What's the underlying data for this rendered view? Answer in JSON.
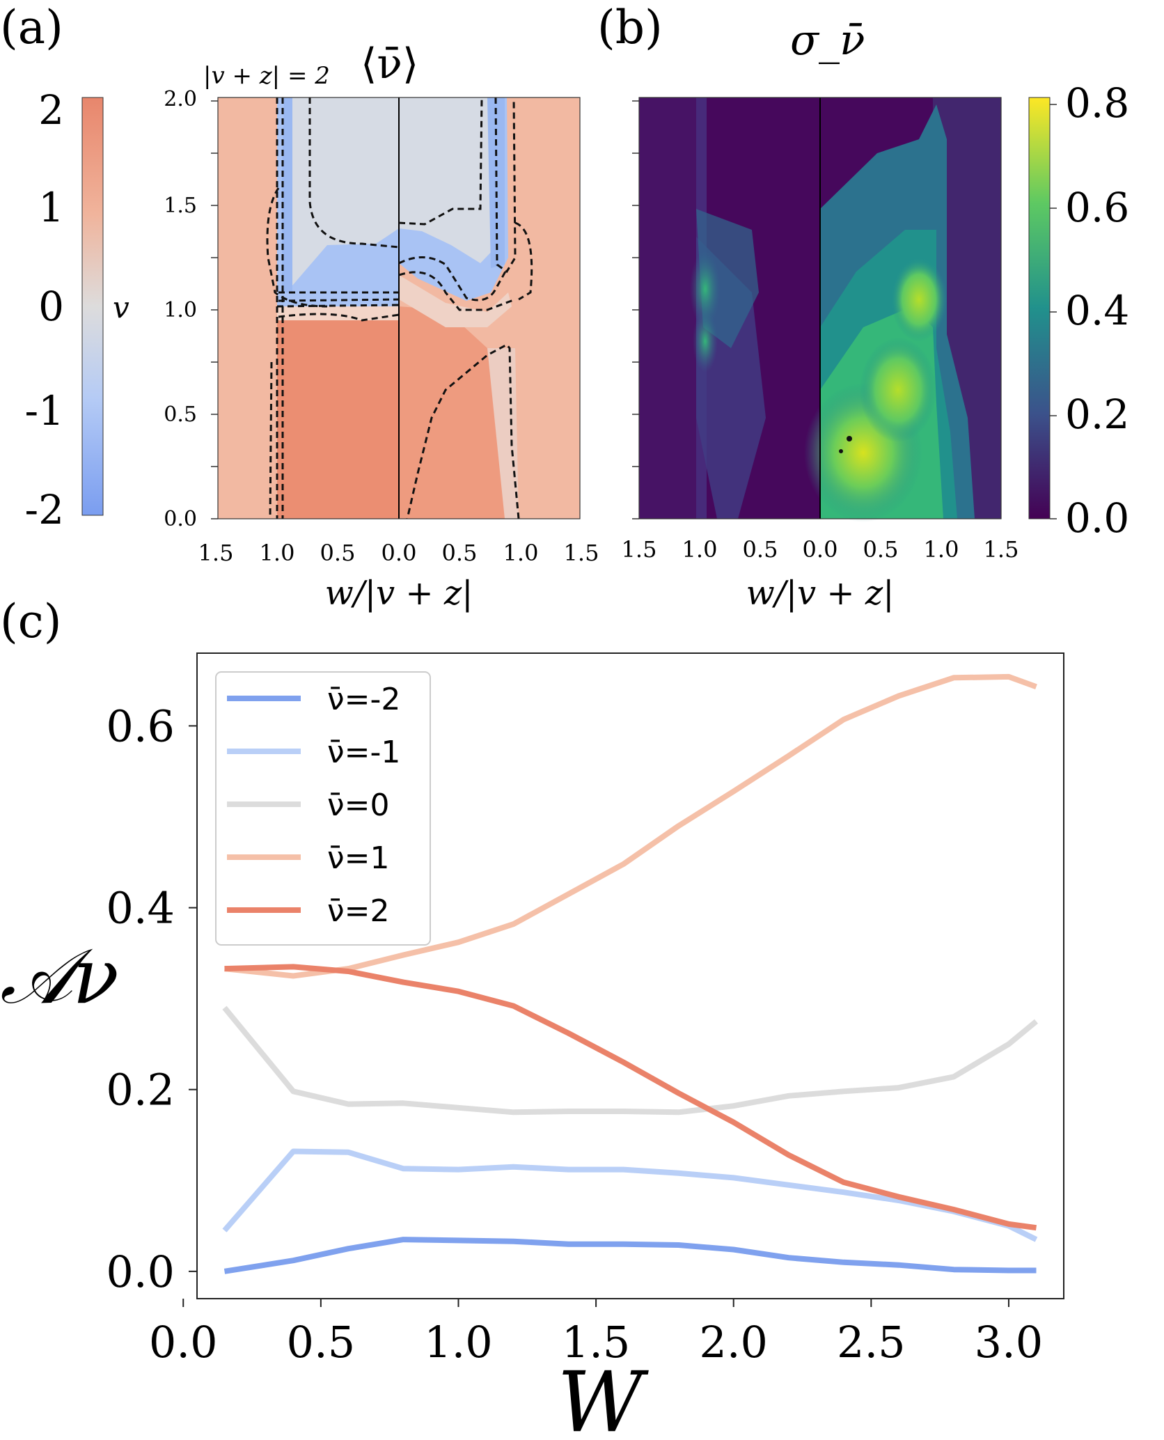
{
  "panel_labels": {
    "a": "(a)",
    "b": "(b)",
    "c": "(c)"
  },
  "colors": {
    "nu_m2": "#7fa1ee",
    "nu_m1": "#b9cff7",
    "nu_0": "#dcdcdc",
    "nu_1": "#f5c0a8",
    "nu_2": "#ea8269",
    "heat_hi": "#e8866c",
    "heat_lo": "#8ab0f3",
    "viridis_lo": "#440154",
    "viridis_hi": "#fde725"
  },
  "chart_data": [
    {
      "id": "a",
      "type": "heatmap",
      "title": "⟨ν̄⟩",
      "annotation": "|v + z| = 2",
      "xlabel": "w/|v + z|",
      "ylabel": "",
      "x_ticks": [
        "1.5",
        "1.0",
        "0.5",
        "0.0",
        "0.5",
        "1.0",
        "1.5"
      ],
      "y_ticks": [
        "0.0",
        "0.5",
        "1.0",
        "1.5",
        "2.0"
      ],
      "ylim": [
        0,
        2
      ],
      "colorbar": {
        "label": "v",
        "ticks": [
          "2",
          "1",
          "0",
          "-1",
          "-2"
        ],
        "range": [
          -2,
          2
        ],
        "colormap": "coolwarm"
      },
      "contours": "dashed"
    },
    {
      "id": "b",
      "type": "heatmap",
      "title": "σ_ν̄",
      "xlabel": "w/|v + z|",
      "ylabel": "",
      "x_ticks": [
        "1.5",
        "1.0",
        "0.5",
        "0.0",
        "0.5",
        "1.0",
        "1.5"
      ],
      "colorbar": {
        "label": "",
        "ticks": [
          "0.8",
          "0.6",
          "0.4",
          "0.2",
          "0.0"
        ],
        "range": [
          0,
          0.8
        ],
        "colormap": "viridis"
      }
    },
    {
      "id": "c",
      "type": "line",
      "title": "",
      "xlabel": "W",
      "ylabel": "𝒜ν",
      "xlim": [
        0.05,
        3.2
      ],
      "ylim": [
        -0.03,
        0.68
      ],
      "x_ticks": [
        0.0,
        0.5,
        1.0,
        1.5,
        2.0,
        2.5,
        3.0
      ],
      "x_tick_labels": [
        "0.0",
        "0.5",
        "1.0",
        "1.5",
        "2.0",
        "2.5",
        "3.0"
      ],
      "y_ticks": [
        0.0,
        0.2,
        0.4,
        0.6
      ],
      "y_tick_labels": [
        "0.0",
        "0.2",
        "0.4",
        "0.6"
      ],
      "legend_position": "top-left",
      "x": [
        0.15,
        0.4,
        0.6,
        0.8,
        1.0,
        1.2,
        1.4,
        1.6,
        1.8,
        2.0,
        2.2,
        2.4,
        2.6,
        2.8,
        3.0,
        3.1
      ],
      "series": [
        {
          "name": "ν̄=-2",
          "color": "#7fa1ee",
          "values": [
            0.0,
            0.012,
            0.025,
            0.035,
            0.034,
            0.033,
            0.03,
            0.03,
            0.029,
            0.024,
            0.015,
            0.01,
            0.007,
            0.002,
            0.001,
            0.001
          ]
        },
        {
          "name": "ν̄=-1",
          "color": "#b9cff7",
          "values": [
            0.045,
            0.132,
            0.131,
            0.113,
            0.112,
            0.115,
            0.112,
            0.112,
            0.108,
            0.103,
            0.095,
            0.087,
            0.078,
            0.066,
            0.05,
            0.035
          ]
        },
        {
          "name": "ν̄=0",
          "color": "#dcdcdc",
          "values": [
            0.29,
            0.198,
            0.184,
            0.185,
            0.18,
            0.175,
            0.176,
            0.176,
            0.175,
            0.182,
            0.193,
            0.198,
            0.202,
            0.214,
            0.25,
            0.275
          ]
        },
        {
          "name": "ν̄=1",
          "color": "#f5c0a8",
          "values": [
            0.333,
            0.325,
            0.333,
            0.348,
            0.362,
            0.382,
            0.415,
            0.448,
            0.49,
            0.528,
            0.567,
            0.607,
            0.633,
            0.653,
            0.654,
            0.643
          ]
        },
        {
          "name": "ν̄=2",
          "color": "#ea8269",
          "values": [
            0.333,
            0.335,
            0.33,
            0.318,
            0.308,
            0.292,
            0.262,
            0.23,
            0.196,
            0.164,
            0.128,
            0.098,
            0.082,
            0.068,
            0.052,
            0.048
          ]
        }
      ]
    }
  ]
}
